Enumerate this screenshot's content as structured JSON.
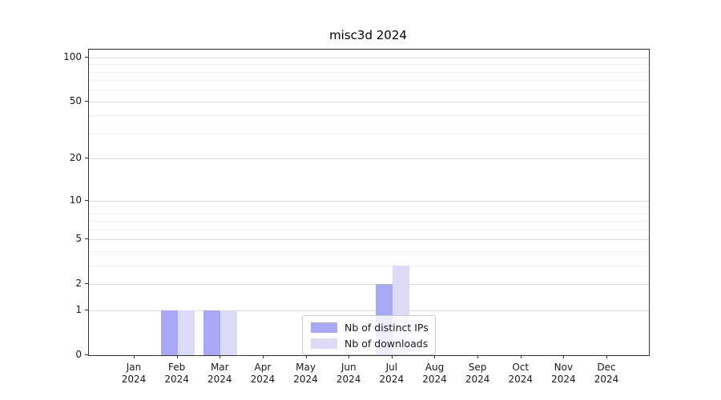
{
  "chart_data": {
    "type": "bar",
    "title": "misc3d 2024",
    "categories": [
      "Jan",
      "Feb",
      "Mar",
      "Apr",
      "May",
      "Jun",
      "Jul",
      "Aug",
      "Sep",
      "Oct",
      "Nov",
      "Dec"
    ],
    "x_year_label": "2024",
    "series": [
      {
        "name": "Nb of distinct IPs",
        "color": "#a8a8f6",
        "values": [
          0,
          1,
          1,
          0,
          0,
          0,
          2,
          0,
          0,
          0,
          0,
          0
        ]
      },
      {
        "name": "Nb of downloads",
        "color": "#dbdbf8",
        "values": [
          0,
          1,
          1,
          0,
          0,
          0,
          3,
          0,
          0,
          0,
          0,
          0
        ]
      }
    ],
    "y_axis": {
      "scale": "log1p",
      "ticks": [
        0,
        1,
        2,
        5,
        10,
        20,
        50,
        100
      ],
      "minor_gridlines": [
        3,
        4,
        6,
        7,
        8,
        9,
        30,
        40,
        60,
        70,
        80,
        90
      ],
      "range_top_value": 100
    },
    "legend": {
      "position": "bottom-center",
      "entries": [
        "Nb of distinct IPs",
        "Nb of downloads"
      ]
    },
    "grid": true
  },
  "colors": {
    "grid_major": "#dcdcdc",
    "grid_minor": "#f0f0f0",
    "spine": "#333333",
    "text": "#1a1a1a",
    "background": "#ffffff"
  }
}
